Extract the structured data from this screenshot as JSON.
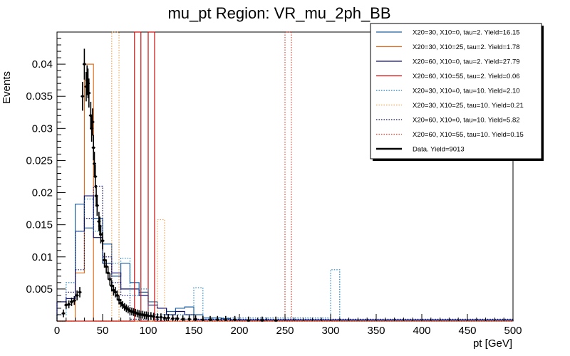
{
  "chart_data": {
    "type": "line",
    "title": "mu_pt Region: VR_mu_2ph_BB",
    "xlabel": "pt [GeV]",
    "ylabel": "Events",
    "xlim": [
      0,
      500
    ],
    "ylim": [
      0,
      0.045
    ],
    "x_ticks": [
      "0",
      "50",
      "100",
      "150",
      "200",
      "250",
      "300",
      "350",
      "400",
      "450",
      "500"
    ],
    "y_ticks": [
      "0.005",
      "0.01",
      "0.015",
      "0.02",
      "0.025",
      "0.03",
      "0.035",
      "0.04"
    ],
    "legend_position": "top-right",
    "series": [
      {
        "name": "X20=30, X10=0, tau=2. Yield=16.15",
        "color": "#1f5fa0",
        "style": "solid",
        "bins": [
          {
            "lo": 0,
            "hi": 10,
            "v": 0.003
          },
          {
            "lo": 10,
            "hi": 20,
            "v": 0.0035
          },
          {
            "lo": 20,
            "hi": 30,
            "v": 0.0182
          },
          {
            "lo": 30,
            "hi": 40,
            "v": 0.0145
          },
          {
            "lo": 40,
            "hi": 50,
            "v": 0.016
          },
          {
            "lo": 50,
            "hi": 60,
            "v": 0.012
          },
          {
            "lo": 60,
            "hi": 70,
            "v": 0.007
          },
          {
            "lo": 70,
            "hi": 80,
            "v": 0.009
          },
          {
            "lo": 80,
            "hi": 90,
            "v": 0.006
          },
          {
            "lo": 90,
            "hi": 100,
            "v": 0.0045
          },
          {
            "lo": 100,
            "hi": 110,
            "v": 0.003
          },
          {
            "lo": 110,
            "hi": 120,
            "v": 0.002
          },
          {
            "lo": 120,
            "hi": 130,
            "v": 0.0015
          },
          {
            "lo": 130,
            "hi": 140,
            "v": 0.002
          },
          {
            "lo": 140,
            "hi": 150,
            "v": 0.0022
          },
          {
            "lo": 150,
            "hi": 160,
            "v": 0.001
          },
          {
            "lo": 160,
            "hi": 170,
            "v": 0.0005
          },
          {
            "lo": 170,
            "hi": 180,
            "v": 0.0005
          },
          {
            "lo": 180,
            "hi": 190,
            "v": 0.0004
          },
          {
            "lo": 190,
            "hi": 500,
            "v": 0.0001
          }
        ]
      },
      {
        "name": "X20=30, X10=25, tau=2. Yield=1.78",
        "color": "#e07020",
        "style": "solid",
        "bins": [
          {
            "lo": 0,
            "hi": 20,
            "v": 0.0
          },
          {
            "lo": 20,
            "hi": 30,
            "v": 0.0075
          },
          {
            "lo": 30,
            "hi": 40,
            "v": 0.04
          },
          {
            "lo": 40,
            "hi": 50,
            "v": 0.0
          },
          {
            "lo": 50,
            "hi": 500,
            "v": 0.0
          }
        ]
      },
      {
        "name": "X20=60, X10=0, tau=2. Yield=27.79",
        "color": "#101070",
        "style": "solid",
        "bins": [
          {
            "lo": 0,
            "hi": 10,
            "v": 0.003
          },
          {
            "lo": 10,
            "hi": 20,
            "v": 0.0035
          },
          {
            "lo": 20,
            "hi": 30,
            "v": 0.014
          },
          {
            "lo": 30,
            "hi": 40,
            "v": 0.0195
          },
          {
            "lo": 40,
            "hi": 50,
            "v": 0.013
          },
          {
            "lo": 50,
            "hi": 60,
            "v": 0.009
          },
          {
            "lo": 60,
            "hi": 70,
            "v": 0.0075
          },
          {
            "lo": 70,
            "hi": 80,
            "v": 0.005
          },
          {
            "lo": 80,
            "hi": 90,
            "v": 0.005
          },
          {
            "lo": 90,
            "hi": 100,
            "v": 0.004
          },
          {
            "lo": 100,
            "hi": 110,
            "v": 0.0025
          },
          {
            "lo": 110,
            "hi": 120,
            "v": 0.002
          },
          {
            "lo": 120,
            "hi": 130,
            "v": 0.001
          },
          {
            "lo": 130,
            "hi": 140,
            "v": 0.0015
          },
          {
            "lo": 140,
            "hi": 150,
            "v": 0.001
          },
          {
            "lo": 150,
            "hi": 500,
            "v": 0.0002
          }
        ]
      },
      {
        "name": "X20=60, X10=55, tau=2. Yield=0.06",
        "color": "#cc1010",
        "style": "solid",
        "bins": [
          {
            "lo": 0,
            "hi": 85,
            "v": 0.0
          },
          {
            "lo": 85,
            "hi": 92,
            "v": 0.045
          },
          {
            "lo": 92,
            "hi": 100,
            "v": 0.0
          },
          {
            "lo": 100,
            "hi": 107,
            "v": 0.045
          },
          {
            "lo": 107,
            "hi": 500,
            "v": 0.0
          }
        ]
      },
      {
        "name": "X20=30, X10=0, tau=10. Yield=2.10",
        "color": "#2080c0",
        "style": "dotted",
        "bins": [
          {
            "lo": 0,
            "hi": 10,
            "v": 0.001
          },
          {
            "lo": 10,
            "hi": 20,
            "v": 0.006
          },
          {
            "lo": 20,
            "hi": 30,
            "v": 0.014
          },
          {
            "lo": 30,
            "hi": 40,
            "v": 0.019
          },
          {
            "lo": 40,
            "hi": 50,
            "v": 0.014
          },
          {
            "lo": 50,
            "hi": 60,
            "v": 0.009
          },
          {
            "lo": 60,
            "hi": 70,
            "v": 0.009
          },
          {
            "lo": 70,
            "hi": 80,
            "v": 0.0098
          },
          {
            "lo": 80,
            "hi": 90,
            "v": 0.004
          },
          {
            "lo": 90,
            "hi": 100,
            "v": 0.005
          },
          {
            "lo": 100,
            "hi": 150,
            "v": 0.001
          },
          {
            "lo": 150,
            "hi": 160,
            "v": 0.0052
          },
          {
            "lo": 160,
            "hi": 300,
            "v": 0.0005
          },
          {
            "lo": 300,
            "hi": 310,
            "v": 0.008
          },
          {
            "lo": 310,
            "hi": 500,
            "v": 0.0
          }
        ]
      },
      {
        "name": "X20=30, X10=25, tau=10. Yield=0.21",
        "color": "#f0a050",
        "style": "dotted",
        "bins": [
          {
            "lo": 0,
            "hi": 60,
            "v": 0.0
          },
          {
            "lo": 60,
            "hi": 68,
            "v": 0.045
          },
          {
            "lo": 68,
            "hi": 110,
            "v": 0.0
          },
          {
            "lo": 110,
            "hi": 118,
            "v": 0.0158
          },
          {
            "lo": 118,
            "hi": 500,
            "v": 0.0
          }
        ]
      },
      {
        "name": "X20=60, X10=0, tau=10. Yield=5.82",
        "color": "#101070",
        "style": "dotted",
        "bins": [
          {
            "lo": 0,
            "hi": 10,
            "v": 0.003
          },
          {
            "lo": 10,
            "hi": 20,
            "v": 0.0045
          },
          {
            "lo": 20,
            "hi": 30,
            "v": 0.008
          },
          {
            "lo": 30,
            "hi": 40,
            "v": 0.016
          },
          {
            "lo": 40,
            "hi": 50,
            "v": 0.021
          },
          {
            "lo": 50,
            "hi": 60,
            "v": 0.01
          },
          {
            "lo": 60,
            "hi": 70,
            "v": 0.006
          },
          {
            "lo": 70,
            "hi": 80,
            "v": 0.004
          },
          {
            "lo": 80,
            "hi": 500,
            "v": 0.0003
          }
        ]
      },
      {
        "name": "X20=60, X10=55, tau=10. Yield=0.15",
        "color": "#e04030",
        "style": "dotted",
        "bins": [
          {
            "lo": 0,
            "hi": 250,
            "v": 0.0
          },
          {
            "lo": 250,
            "hi": 257,
            "v": 0.045
          },
          {
            "lo": 257,
            "hi": 500,
            "v": 0.0
          }
        ]
      }
    ],
    "data_series": {
      "name": "Data. Yield=9013",
      "color": "#000000",
      "points": [
        [
          7,
          0.0012
        ],
        [
          10,
          0.0025
        ],
        [
          13,
          0.0026
        ],
        [
          16,
          0.003
        ],
        [
          19,
          0.0032
        ],
        [
          22,
          0.004
        ],
        [
          25,
          0.0045
        ],
        [
          28,
          0.035
        ],
        [
          30,
          0.04
        ],
        [
          32,
          0.0365
        ],
        [
          33,
          0.0375
        ],
        [
          34,
          0.037
        ],
        [
          35,
          0.0355
        ],
        [
          37,
          0.032
        ],
        [
          38,
          0.03
        ],
        [
          39,
          0.031
        ],
        [
          40,
          0.027
        ],
        [
          41,
          0.0245
        ],
        [
          42,
          0.0225
        ],
        [
          43,
          0.0195
        ],
        [
          44,
          0.018
        ],
        [
          46,
          0.0155
        ],
        [
          47,
          0.0148
        ],
        [
          48,
          0.0135
        ],
        [
          50,
          0.0125
        ],
        [
          52,
          0.0095
        ],
        [
          54,
          0.0085
        ],
        [
          56,
          0.0075
        ],
        [
          58,
          0.0065
        ],
        [
          60,
          0.0055
        ],
        [
          62,
          0.0048
        ],
        [
          64,
          0.0045
        ],
        [
          66,
          0.004
        ],
        [
          68,
          0.0033
        ],
        [
          70,
          0.0028
        ],
        [
          72,
          0.0025
        ],
        [
          74,
          0.0022
        ],
        [
          76,
          0.002
        ],
        [
          78,
          0.0018
        ],
        [
          80,
          0.0016
        ],
        [
          82,
          0.0015
        ],
        [
          84,
          0.0014
        ],
        [
          86,
          0.0013
        ],
        [
          88,
          0.0012
        ],
        [
          90,
          0.0011
        ],
        [
          92,
          0.001
        ],
        [
          94,
          0.001
        ],
        [
          96,
          0.0009
        ],
        [
          98,
          0.0009
        ],
        [
          100,
          0.0008
        ],
        [
          103,
          0.0008
        ],
        [
          106,
          0.0007
        ],
        [
          110,
          0.0006
        ],
        [
          114,
          0.0006
        ],
        [
          118,
          0.0005
        ],
        [
          122,
          0.0005
        ],
        [
          127,
          0.0004
        ],
        [
          132,
          0.0004
        ],
        [
          138,
          0.0003
        ],
        [
          145,
          0.0003
        ],
        [
          152,
          0.0003
        ],
        [
          160,
          0.0002
        ],
        [
          168,
          0.0002
        ],
        [
          176,
          0.0002
        ],
        [
          185,
          0.0002
        ],
        [
          195,
          0.0002
        ],
        [
          210,
          0.0001
        ],
        [
          225,
          0.0001
        ],
        [
          240,
          0.0001
        ]
      ]
    }
  }
}
